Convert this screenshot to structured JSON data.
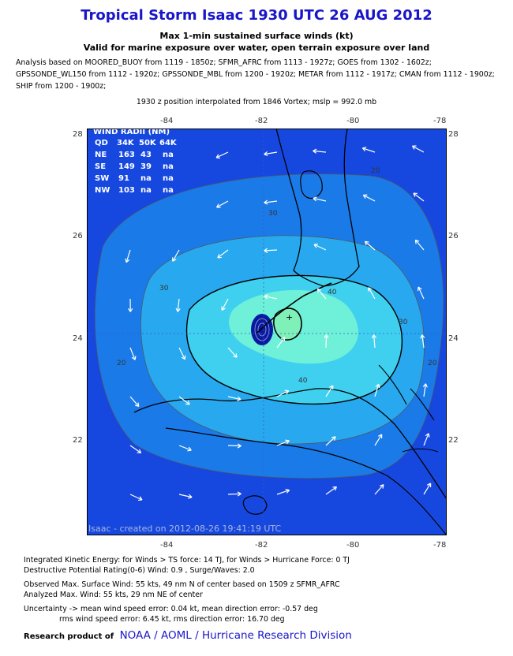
{
  "header": {
    "title": "Tropical Storm Isaac 1930 UTC 26 AUG 2012",
    "subtitle1": "Max 1-min sustained surface winds (kt)",
    "subtitle2": "Valid for marine exposure over water, open terrain exposure over land",
    "analysis_lines": [
      "Analysis based on MOORED_BUOY from 1119 - 1850z; SFMR_AFRC from 1113 - 1927z; GOES from 1302 - 1602z;",
      "GPSSONDE_WL150 from 1112 - 1920z; GPSSONDE_MBL from 1200 - 1920z; METAR from 1112 - 1917z; CMAN from 1112 - 1900z;",
      "SHIP from 1200 - 1900z;"
    ],
    "position_note": "1930 z position interpolated from 1846 Vortex; mslp = 992.0 mb"
  },
  "map": {
    "lon_labels": [
      "-84",
      "-82",
      "-80",
      "-78"
    ],
    "lat_labels": [
      "28",
      "26",
      "24",
      "22"
    ],
    "contour_labels": [
      "20",
      "20",
      "30",
      "30",
      "30",
      "40",
      "40",
      "20"
    ],
    "credit": "Isaac - created on 2012-08-26 19:41:19 UTC",
    "colors": {
      "outer": "#1648e0",
      "c20": "#1a7ae8",
      "c30": "#28a8ee",
      "c40": "#3fd0f0",
      "c50": "#6ff0d8",
      "c60": "#7ff0b8",
      "eye": "#0a1aa0"
    },
    "wind_radii": {
      "header": "WIND RADII (NM)",
      "columns": [
        "QD",
        "34K",
        "50K",
        "64K"
      ],
      "rows": [
        [
          "NE",
          "163",
          "43",
          "na"
        ],
        [
          "SE",
          "149",
          "39",
          "na"
        ],
        [
          "SW",
          "91",
          "na",
          "na"
        ],
        [
          "NW",
          "103",
          "na",
          "na"
        ]
      ]
    }
  },
  "footer": {
    "ike": "Integrated Kinetic Energy: for Winds > TS force: 14 TJ, for Winds > Hurricane Force: 0 TJ",
    "dpr": "Destructive Potential Rating(0-6)  Wind: 0.9 , Surge/Waves: 2.0",
    "obs": "Observed Max. Surface Wind: 55 kts, 49 nm N of center based on 1509 z SFMR_AFRC",
    "analyzed": "Analyzed Max. Wind: 55 kts, 29 nm  NE of center",
    "uncert1": "Uncertainty -> mean wind speed error: 0.04 kt, mean direction error:  -0.57 deg",
    "uncert2": "rms wind speed error: 6.45 kt, rms direction error: 16.70 deg",
    "research_label": "Research product of",
    "org": "NOAA  /  AOML  /  Hurricane Research Division"
  }
}
